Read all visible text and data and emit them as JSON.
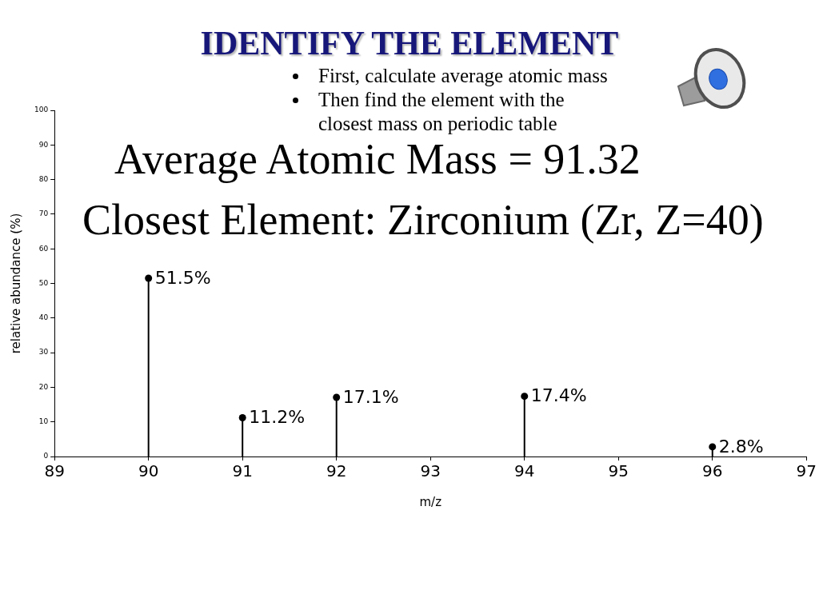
{
  "chart_data": {
    "type": "lollipop",
    "title": "IDENTIFY THE ELEMENT",
    "xlabel": "m/z",
    "ylabel": "relative abundance (%)",
    "x": [
      90,
      91,
      92,
      94,
      96
    ],
    "values": [
      51.5,
      11.2,
      17.1,
      17.4,
      2.8
    ],
    "value_labels": [
      "51.5%",
      "11.2%",
      "17.1%",
      "17.4%",
      "2.8%"
    ],
    "color": "#000000",
    "marker": "circle",
    "xlim": [
      89,
      97
    ],
    "xticks": [
      89,
      90,
      91,
      92,
      93,
      94,
      95,
      96,
      97
    ],
    "ylim": [
      0,
      100
    ],
    "yticks": [
      0,
      10,
      20,
      30,
      40,
      50,
      60,
      70,
      80,
      90,
      100
    ],
    "annotations": [
      "First, calculate average atomic mass",
      "Then find the element with the closest mass on periodic table",
      "Average Atomic Mass = 91.32",
      "Closest Element: Zirconium (Zr, Z=40)"
    ]
  }
}
